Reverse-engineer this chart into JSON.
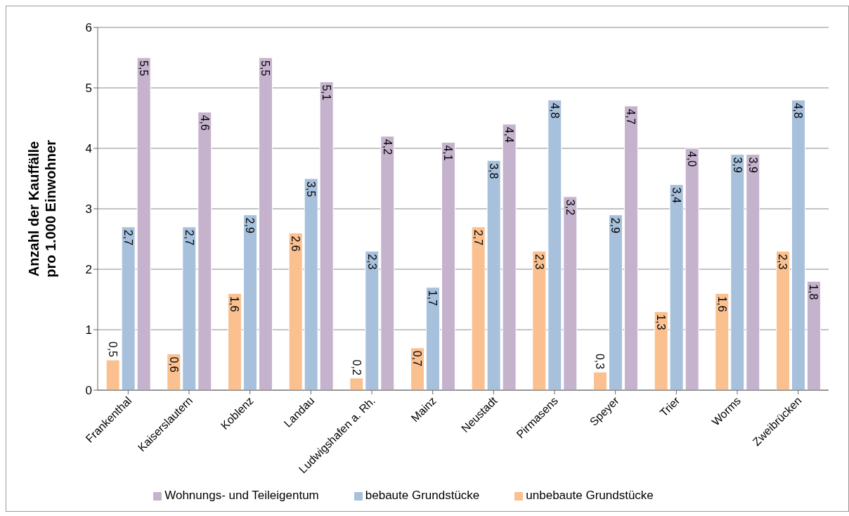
{
  "chart_data": {
    "type": "bar",
    "ylabel": "Anzahl der Kauffälle pro 1.000 Einwohner",
    "categories": [
      "Frankenthal",
      "Kaiserslautern",
      "Koblenz",
      "Landau",
      "Ludwigshafen a. Rh.",
      "Mainz",
      "Neustadt",
      "Pirmasens",
      "Speyer",
      "Trier",
      "Worms",
      "Zweibrücken"
    ],
    "series": [
      {
        "name": "unbebaute Grundstücke",
        "color": "#fac090",
        "values": [
          0.5,
          0.6,
          1.6,
          2.6,
          0.2,
          0.7,
          2.7,
          2.3,
          0.3,
          1.3,
          1.6,
          2.3
        ],
        "value_labels": [
          "0,5",
          "0,6",
          "1,6",
          "2,6",
          "0,2",
          "0,7",
          "2,7",
          "2,3",
          "0,3",
          "1,3",
          "1,6",
          "2,3"
        ]
      },
      {
        "name": "bebaute Grundstücke",
        "color": "#a7c0dc",
        "values": [
          2.7,
          2.7,
          2.9,
          3.5,
          2.3,
          1.7,
          3.8,
          4.8,
          2.9,
          3.4,
          3.9,
          4.8
        ],
        "value_labels": [
          "2,7",
          "2,7",
          "2,9",
          "3,5",
          "2,3",
          "1,7",
          "3,8",
          "4,8",
          "2,9",
          "3,4",
          "3,9",
          "4,8"
        ]
      },
      {
        "name": "Wohnungs- und Teileigentum",
        "color": "#c5b3cd",
        "values": [
          5.5,
          4.6,
          5.5,
          5.1,
          4.2,
          4.1,
          4.4,
          3.2,
          4.7,
          4.0,
          3.9,
          1.8
        ],
        "value_labels": [
          "5,5",
          "4,6",
          "5,5",
          "5,1",
          "4,2",
          "4,1",
          "4,4",
          "3,2",
          "4,7",
          "4,0",
          "3,9",
          "1,8"
        ]
      }
    ],
    "ylim": [
      0,
      6
    ],
    "yticks": [
      0,
      1,
      2,
      3,
      4,
      5,
      6
    ],
    "grid": "y",
    "legend": "bottom"
  }
}
